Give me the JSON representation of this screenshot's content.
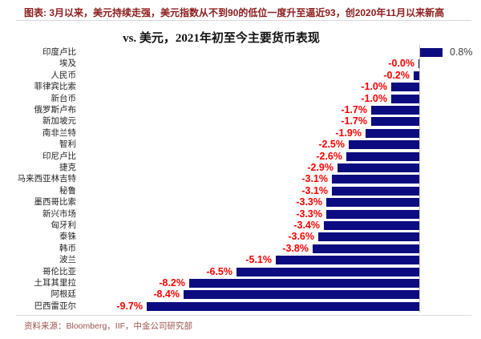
{
  "header": {
    "title": "图表: 3月以来，美元持续走强，美元指数从不到90的低位一度升至逼近93，创2020年11月以来新高"
  },
  "chart": {
    "title": "vs. 美元，2021年初至今主要货币表现"
  },
  "footer": {
    "source": "资料来源：Bloomberg，IIF，中金公司研究部"
  },
  "colors": {
    "bar": "#0c0c80",
    "negative_value_label": "#fe0000",
    "positive_value_label": "#3f3f3f",
    "caption_red": "#8c1c1c",
    "source_red": "#9d544e",
    "axis_gray": "#c4c4c4"
  },
  "chart_data": {
    "type": "bar",
    "orientation": "horizontal",
    "title": "vs. 美元，2021年初至今主要货币表现",
    "unit": "%",
    "xlim": [
      -10,
      1
    ],
    "grid": false,
    "legend": "none",
    "categories": [
      "印度卢比",
      "埃及",
      "人民币",
      "菲律宾比索",
      "新台币",
      "俄罗斯卢布",
      "新加坡元",
      "南非兰特",
      "智利",
      "印尼卢比",
      "捷克",
      "马来西亚林吉特",
      "秘鲁",
      "墨西哥比索",
      "新兴市场",
      "匈牙利",
      "泰铢",
      "韩币",
      "波兰",
      "哥伦比亚",
      "土耳其里拉",
      "阿根廷",
      "巴西雷亚尔"
    ],
    "values": [
      0.8,
      -0.0,
      -0.2,
      -1.0,
      -1.0,
      -1.7,
      -1.7,
      -1.9,
      -2.5,
      -2.6,
      -2.9,
      -3.1,
      -3.1,
      -3.3,
      -3.3,
      -3.4,
      -3.6,
      -3.8,
      -5.1,
      -6.5,
      -8.2,
      -8.4,
      -9.7
    ],
    "value_labels": [
      "0.8%",
      "-0.0%",
      "-0.2%",
      "-1.0%",
      "-1.0%",
      "-1.7%",
      "-1.7%",
      "-1.9%",
      "-2.5%",
      "-2.6%",
      "-2.9%",
      "-3.1%",
      "-3.1%",
      "-3.3%",
      "-3.3%",
      "-3.4%",
      "-3.6%",
      "-3.8%",
      "-5.1%",
      "-6.5%",
      "-8.2%",
      "-8.4%",
      "-9.7%"
    ]
  }
}
